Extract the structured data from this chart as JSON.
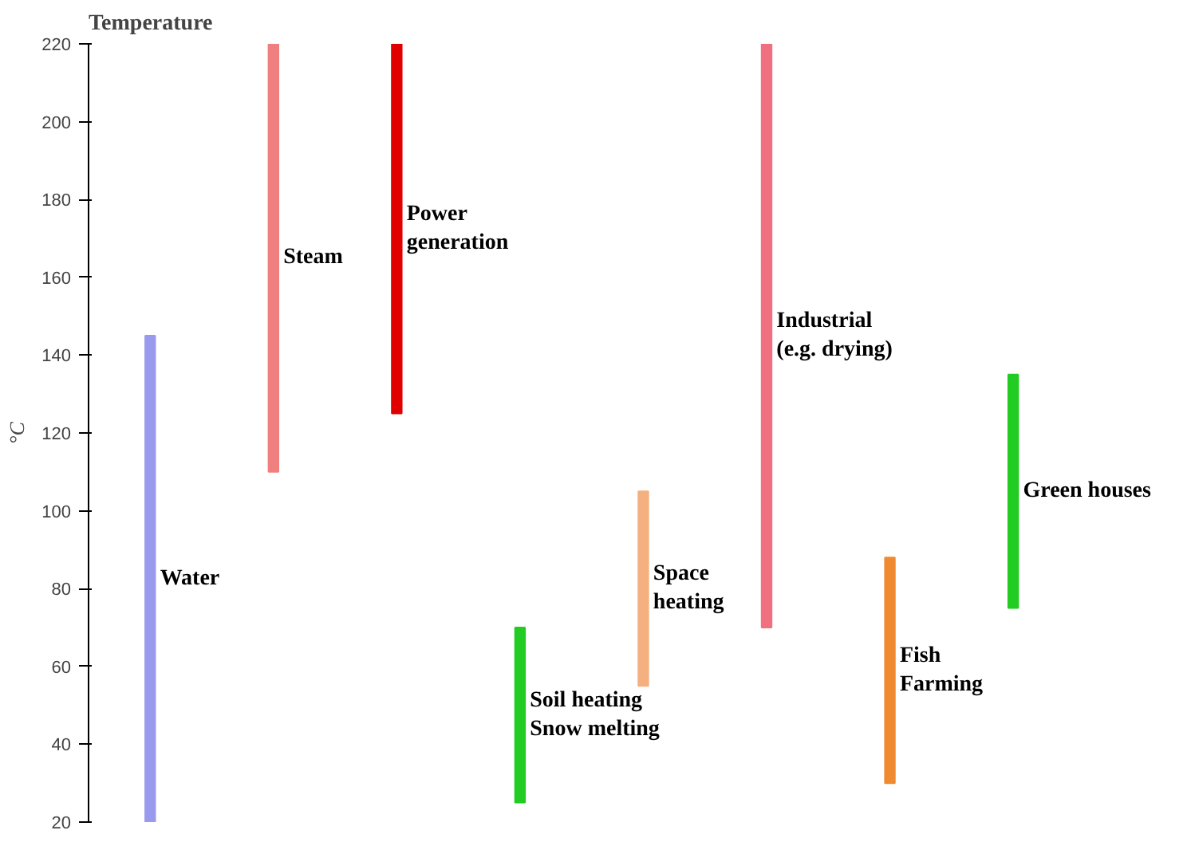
{
  "chart_data": {
    "type": "bar",
    "title": "Temperature",
    "ylabel": "°C",
    "categories": [
      "Water",
      "Steam",
      "Power\ngeneration",
      "Soil heating\nSnow melting",
      "Space\nheating",
      "Industrial\n(e.g. drying)",
      "Fish\nFarming",
      "Green houses"
    ],
    "base": [
      20,
      110,
      125,
      25,
      55,
      70,
      30,
      75
    ],
    "values": [
      125,
      110,
      95,
      45,
      50,
      150,
      58,
      60
    ],
    "colors": [
      "#9999ee",
      "#f08080",
      "#e00000",
      "#22cc22",
      "#f5b080",
      "#f07080",
      "#f08a30",
      "#22cc22"
    ],
    "ylim": [
      20,
      220
    ],
    "yticks": [
      20,
      40,
      60,
      80,
      100,
      120,
      140,
      160,
      180,
      200,
      220
    ],
    "tick_labels": "y",
    "grid": false
  }
}
